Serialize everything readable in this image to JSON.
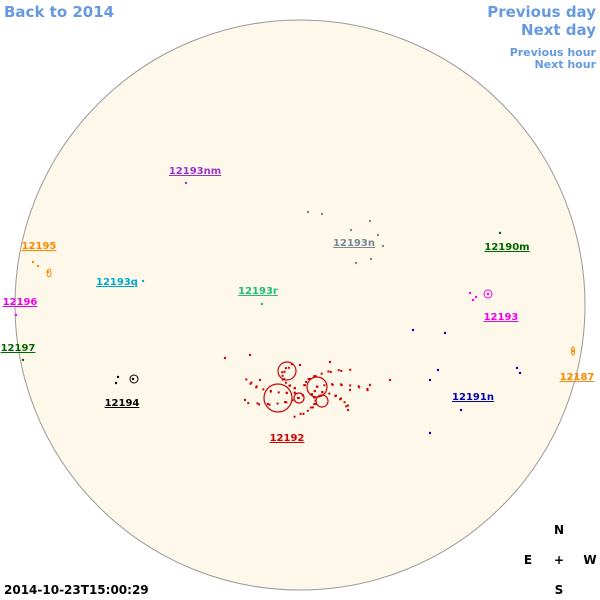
{
  "nav": {
    "back": "Back to 2014",
    "previous_day": "Previous day",
    "next_day": "Next day",
    "previous_hour": "Previous hour",
    "next_hour": "Next hour"
  },
  "regions": [
    {
      "label": "12193nm",
      "color": "#9933cc"
    },
    {
      "label": "12193n",
      "color": "#778899"
    },
    {
      "label": "12190m",
      "color": "#006600"
    },
    {
      "label": "12195",
      "color": "#ff8800"
    },
    {
      "label": "12193q",
      "color": "#00aacc"
    },
    {
      "label": "12193r",
      "color": "#22bb77"
    },
    {
      "label": "12196",
      "color": "#ee00ee"
    },
    {
      "label": "12193",
      "color": "#ee00ee"
    },
    {
      "label": "12197",
      "color": "#006600"
    },
    {
      "label": "12187",
      "color": "#ff8800"
    },
    {
      "label": "12194",
      "color": "#000000"
    },
    {
      "label": "12191n",
      "color": "#0000aa"
    },
    {
      "label": "12192",
      "color": "#cc0000"
    }
  ],
  "compass": {
    "north": "N",
    "east": "E",
    "center": "+",
    "west": "W",
    "south": "S"
  },
  "timestamp": "2014-10-23T15:00:29"
}
